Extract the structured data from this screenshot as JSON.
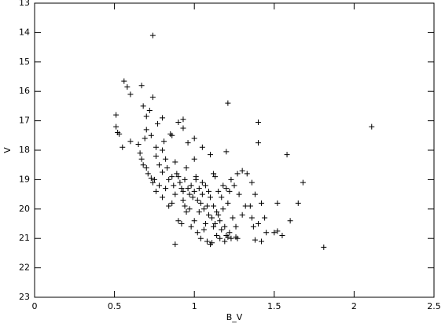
{
  "chart_data": {
    "type": "scatter",
    "x_label": "B_V",
    "y_label": "V",
    "xlim": [
      0,
      2.5
    ],
    "xticks": [
      0,
      0.5,
      1,
      1.5,
      2,
      2.5
    ],
    "ylim": [
      23,
      13
    ],
    "yticks": [
      13,
      14,
      15,
      16,
      17,
      18,
      19,
      20,
      21,
      22,
      23
    ],
    "color": "#000000",
    "x": [
      0.74,
      1.21,
      2.11,
      1.81,
      1.4,
      1.4,
      1.58,
      1.68,
      1.65,
      1.52,
      1.6,
      1.5,
      1.55,
      1.52,
      1.45,
      1.38,
      1.42,
      0.88,
      0.56,
      0.58,
      0.6,
      0.67,
      0.74,
      0.68,
      0.72,
      0.7,
      0.51,
      0.51,
      0.52,
      0.53,
      0.55,
      0.6,
      0.65,
      0.69,
      0.7,
      0.73,
      0.77,
      0.8,
      0.76,
      0.8,
      0.81,
      0.85,
      0.86,
      0.9,
      0.93,
      0.93,
      0.96,
      1.0,
      1.05,
      1.1,
      1.2,
      0.66,
      0.67,
      0.68,
      0.7,
      0.71,
      0.73,
      0.75,
      0.76,
      0.78,
      0.8,
      0.82,
      0.83,
      0.84,
      0.86,
      0.88,
      0.89,
      0.9,
      0.91,
      0.92,
      0.93,
      0.94,
      0.95,
      0.96,
      0.97,
      0.98,
      0.99,
      1.0,
      1.01,
      1.02,
      1.03,
      1.04,
      1.05,
      1.06,
      1.07,
      1.08,
      1.09,
      1.1,
      1.11,
      1.12,
      1.13,
      1.14,
      1.15,
      1.16,
      1.17,
      1.18,
      1.19,
      1.2,
      1.21,
      1.22,
      1.23,
      1.24,
      1.25,
      1.26,
      1.27,
      1.28,
      1.3,
      1.32,
      1.35,
      1.36,
      1.37,
      1.38,
      1.4,
      1.42,
      1.44,
      1.33,
      1.36,
      1.23,
      1.3,
      1.22,
      1.18,
      1.12,
      1.05,
      1.0,
      1.01,
      0.93,
      0.95,
      0.9,
      0.92,
      0.98,
      1.0,
      1.02,
      1.04,
      1.06,
      1.08,
      1.1,
      1.14,
      1.16,
      1.19,
      1.21,
      1.26,
      1.27,
      1.11,
      0.86,
      0.84,
      0.88,
      0.8,
      0.78,
      0.74,
      0.76,
      0.82,
      0.87,
      0.94,
      0.97,
      1.03,
      1.07,
      1.12,
      1.15,
      1.09,
      1.13,
      1.17,
      1.2
    ],
    "values": [
      14.1,
      16.4,
      17.2,
      21.3,
      17.05,
      17.75,
      18.15,
      19.1,
      19.8,
      19.8,
      20.4,
      20.8,
      20.9,
      20.75,
      20.8,
      21.05,
      21.1,
      21.2,
      15.65,
      15.85,
      16.1,
      15.8,
      16.2,
      16.5,
      16.65,
      16.85,
      16.8,
      17.2,
      17.4,
      17.45,
      17.9,
      17.7,
      17.8,
      17.6,
      17.3,
      17.5,
      17.1,
      16.9,
      17.9,
      18.0,
      17.7,
      17.45,
      17.5,
      17.05,
      16.95,
      17.25,
      17.75,
      17.6,
      17.9,
      18.15,
      18.05,
      18.1,
      18.3,
      18.5,
      18.6,
      18.8,
      18.95,
      19.0,
      18.2,
      18.5,
      18.75,
      18.3,
      18.6,
      19.0,
      18.9,
      18.4,
      18.8,
      18.9,
      19.1,
      19.3,
      19.4,
      19.0,
      18.6,
      19.3,
      19.5,
      19.2,
      19.6,
      19.4,
      19.0,
      19.7,
      19.3,
      19.8,
      19.5,
      20.0,
      19.2,
      19.9,
      20.2,
      19.6,
      20.3,
      19.9,
      20.5,
      20.1,
      19.4,
      20.4,
      20.7,
      20.0,
      20.6,
      20.9,
      19.8,
      20.8,
      21.0,
      20.3,
      19.2,
      20.6,
      18.8,
      19.5,
      20.2,
      19.9,
      19.9,
      20.3,
      20.6,
      19.5,
      20.5,
      19.8,
      20.3,
      18.8,
      19.1,
      19.0,
      18.7,
      19.4,
      19.2,
      18.8,
      19.1,
      18.3,
      18.9,
      19.7,
      20.1,
      20.4,
      20.5,
      20.6,
      20.4,
      20.8,
      21.0,
      20.7,
      21.1,
      21.2,
      20.9,
      21.0,
      21.1,
      20.95,
      20.95,
      21.0,
      21.15,
      19.8,
      19.9,
      19.5,
      19.6,
      19.2,
      19.1,
      19.4,
      19.3,
      19.2,
      19.9,
      20.0,
      20.1,
      20.5,
      20.6,
      20.2,
      19.4,
      18.9,
      19.6,
      19.3
    ]
  }
}
